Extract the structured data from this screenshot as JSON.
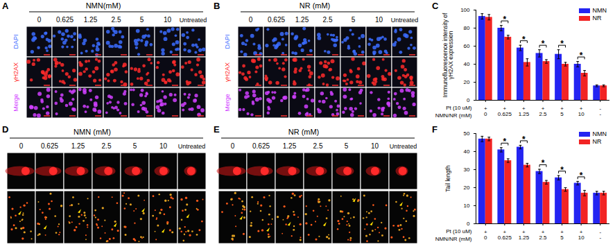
{
  "panels": {
    "A": {
      "letter": "A",
      "header": "NMN(mM)",
      "columns": [
        "0",
        "0.625",
        "1.25",
        "2.5",
        "5",
        "10",
        "Untreated"
      ],
      "rows": [
        {
          "name": "DAPI",
          "color": "#3b6cff"
        },
        {
          "name": "γH2AX",
          "color": "#ff2a2a"
        },
        {
          "name": "Merge",
          "color": "#d040ff"
        }
      ]
    },
    "B": {
      "letter": "B",
      "header": "NR (mM)",
      "columns": [
        "0",
        "0.625",
        "1.25",
        "2.5",
        "5",
        "10",
        "Untreated"
      ],
      "rows": [
        {
          "name": "DAPI",
          "color": "#3b6cff"
        },
        {
          "name": "γH2AX",
          "color": "#ff2a2a"
        },
        {
          "name": "Merge",
          "color": "#d040ff"
        }
      ]
    },
    "D": {
      "letter": "D",
      "header": "NMN (mM)",
      "columns": [
        "0",
        "0.625",
        "1.25",
        "2.5",
        "5",
        "10",
        "Untreated"
      ]
    },
    "E": {
      "letter": "E",
      "header": "NR (mM)",
      "columns": [
        "0",
        "0.625",
        "1.25",
        "2.5",
        "5",
        "10",
        "Untreated"
      ]
    }
  },
  "chart_data": [
    {
      "type": "bar",
      "panel_label": "C",
      "ylabel": "Immunofluorescence intensity of γH2AX expression",
      "categories": [
        "0",
        "0.625",
        "1.25",
        "2.5",
        "5",
        "10",
        "-"
      ],
      "category_label": "NMN/NR (mM)",
      "treatment_label": "Pt (10 uM)",
      "treatment": [
        "+",
        "+",
        "+",
        "+",
        "+",
        "+",
        "-"
      ],
      "series": [
        {
          "name": "NMN",
          "color": "#2424f2",
          "values": [
            93,
            80,
            58,
            52,
            51,
            40,
            16
          ],
          "errors": [
            3,
            3,
            3,
            4,
            5,
            3,
            1
          ]
        },
        {
          "name": "NR",
          "color": "#f22424",
          "values": [
            92,
            70,
            42,
            43,
            40,
            30,
            16
          ],
          "errors": [
            3,
            2,
            4,
            2,
            2,
            3,
            1
          ]
        }
      ],
      "ylim": [
        0,
        100
      ],
      "yticks": [
        0,
        20,
        40,
        60,
        80,
        100
      ],
      "legend": "top-right",
      "significance": {
        "label": "*",
        "groups": [
          false,
          true,
          true,
          true,
          true,
          true,
          false
        ]
      }
    },
    {
      "type": "bar",
      "panel_label": "F",
      "ylabel": "Tail length",
      "categories": [
        "0",
        "0.625",
        "1.25",
        "2.5",
        "5",
        "10",
        "-"
      ],
      "category_label": "NMN/NR (mM)",
      "treatment_label": "Pt (10 uM)",
      "treatment": [
        "+",
        "+",
        "+",
        "+",
        "+",
        "+",
        "-"
      ],
      "series": [
        {
          "name": "NMN",
          "color": "#2424f2",
          "values": [
            47,
            41,
            42.5,
            29,
            25.5,
            22.5,
            17
          ],
          "errors": [
            1.5,
            1.2,
            1,
            1.2,
            1.2,
            1,
            1
          ]
        },
        {
          "name": "NR",
          "color": "#f22424",
          "values": [
            47,
            35,
            32.5,
            23,
            19,
            17,
            17
          ],
          "errors": [
            1,
            1,
            1,
            1,
            1,
            1.5,
            1
          ]
        }
      ],
      "ylim": [
        0,
        50
      ],
      "yticks": [
        0,
        10,
        20,
        30,
        40,
        50
      ],
      "legend": "top-right",
      "significance": {
        "label": "*",
        "groups": [
          false,
          true,
          true,
          true,
          true,
          true,
          false
        ]
      }
    }
  ]
}
